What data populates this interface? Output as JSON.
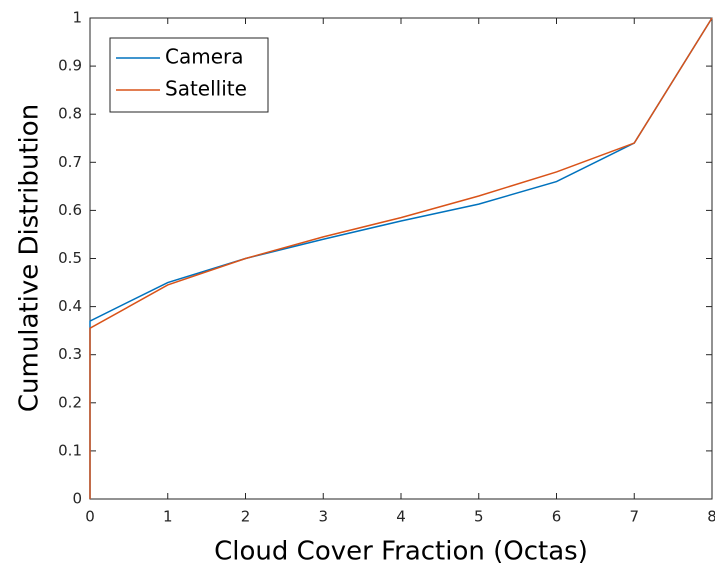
{
  "chart_data": {
    "type": "line",
    "x_label": "Cloud Cover Fraction (Octas)",
    "y_label": "Cumulative Distribution",
    "x": [
      0,
      0,
      1,
      2,
      3,
      4,
      5,
      6,
      7,
      8
    ],
    "series": [
      {
        "name": "Camera",
        "color": "#0072bd",
        "values": [
          0,
          0.37,
          0.45,
          0.5,
          0.54,
          0.578,
          0.613,
          0.66,
          0.74,
          1.0
        ]
      },
      {
        "name": "Satellite",
        "color": "#d95319",
        "values": [
          0,
          0.355,
          0.445,
          0.5,
          0.545,
          0.585,
          0.63,
          0.68,
          0.74,
          1.0
        ]
      }
    ],
    "xlim": [
      0,
      8
    ],
    "xticks": [
      0,
      1,
      2,
      3,
      4,
      5,
      6,
      7,
      8
    ],
    "ylim": [
      0,
      1
    ],
    "yticks": [
      0,
      0.1,
      0.2,
      0.3,
      0.4,
      0.5,
      0.6,
      0.7,
      0.8,
      0.9,
      1
    ],
    "legend": "upper left",
    "grid": false
  }
}
